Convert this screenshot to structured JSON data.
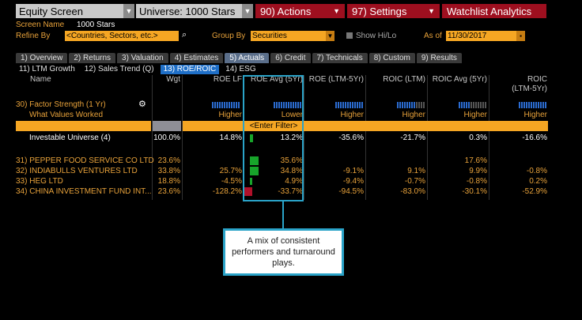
{
  "toolbar": {
    "screen_title": "Equity Screen",
    "universe": "Universe: 1000 Stars",
    "actions": "90) Actions",
    "settings": "97) Settings",
    "watchlist": "Watchlist Analytics"
  },
  "form": {
    "screen_name_label": "Screen Name",
    "screen_name_value": "1000 Stars",
    "refine_by_label": "Refine By",
    "refine_by_value": "<Countries, Sectors, etc.>",
    "group_by_label": "Group By",
    "group_by_value": "Securities",
    "show_hilo_label": "Show Hi/Lo",
    "as_of_label": "As of",
    "as_of_value": "11/30/2017"
  },
  "tabs": [
    "1) Overview",
    "2) Returns",
    "3) Valuation",
    "4) Estimates",
    "5) Actuals",
    "6) Credit",
    "7) Technicals",
    "8) Custom",
    "9) Results"
  ],
  "subtabs": [
    "11) LTM Growth",
    "12) Sales Trend (Q)",
    "13) ROE/ROIC",
    "14) ESG"
  ],
  "headers": {
    "name": "Name",
    "wgt": "Wgt",
    "roe_lf": "ROE LF",
    "roe_avg": "ROE Avg (5Yr)",
    "roe_ltm5": "ROE (LTM-5Yr)",
    "roic_ltm": "ROIC (LTM)",
    "roic_avg": "ROIC Avg (5Yr)",
    "roic_ltm5a": "ROIC",
    "roic_ltm5b": "(LTM-5Yr)"
  },
  "factor": {
    "label": "30) Factor Strength (1 Yr)",
    "worked_label": "What Values Worked",
    "roe_lf": "Higher",
    "roe_avg": "Lower",
    "roe_ltm5": "Higher",
    "roic_ltm": "Higher",
    "roic_avg": "Higher",
    "roic_ltm5": "Higher",
    "enter_filter": "<Enter Filter>"
  },
  "universe_row": {
    "name": "Investable Universe (4)",
    "wgt": "100.0%",
    "roe_lf": "14.8%",
    "roe_avg": "13.2%",
    "roe_ltm5": "-35.6%",
    "roic_ltm": "-21.7%",
    "roic_avg": "0.3%",
    "roic_ltm5": "-16.6%"
  },
  "rows": [
    {
      "name": "31) PEPPER FOOD SERVICE CO LTD",
      "wgt": "23.6%",
      "roe_lf": "",
      "roe_avg": "35.6%",
      "roe_ltm5": "",
      "roic_ltm": "",
      "roic_avg": "17.6%",
      "roic_ltm5": ""
    },
    {
      "name": "32) INDIABULLS VENTURES LTD",
      "wgt": "33.8%",
      "roe_lf": "25.7%",
      "roe_avg": "34.8%",
      "roe_ltm5": "-9.1%",
      "roic_ltm": "9.1%",
      "roic_avg": "9.9%",
      "roic_ltm5": "-0.8%"
    },
    {
      "name": "33) HEG LTD",
      "wgt": "18.8%",
      "roe_lf": "-4.5%",
      "roe_avg": "4.9%",
      "roe_ltm5": "-9.4%",
      "roic_ltm": "-0.7%",
      "roic_avg": "-0.8%",
      "roic_ltm5": "0.2%"
    },
    {
      "name": "34) CHINA INVESTMENT FUND INT...",
      "wgt": "23.6%",
      "roe_lf": "-128.2%",
      "roe_avg": "-33.7%",
      "roe_ltm5": "-94.5%",
      "roic_ltm": "-83.0%",
      "roic_avg": "-30.1%",
      "roic_ltm5": "-52.9%"
    }
  ],
  "callout": "A mix of consistent performers and turnaround plays."
}
